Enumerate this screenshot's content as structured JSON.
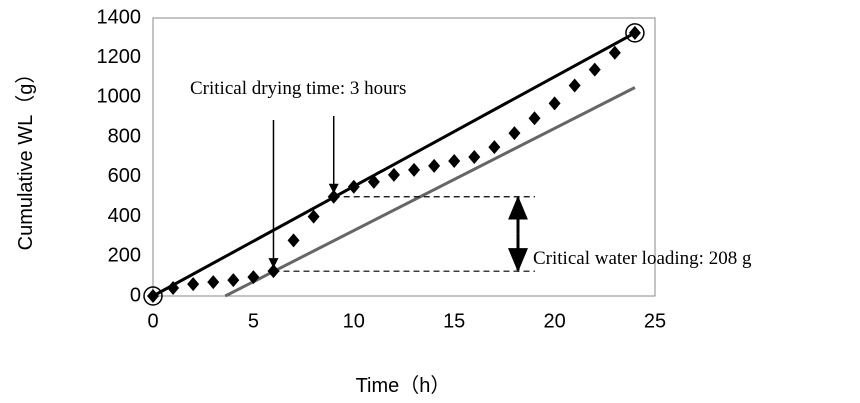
{
  "chart_data": {
    "type": "scatter",
    "x_label": "Time（h）",
    "y_label": "Cumulative WL（g）",
    "xlim": [
      0,
      25
    ],
    "xticks": [
      0,
      5,
      10,
      15,
      20,
      25
    ],
    "ylim": [
      0,
      1400
    ],
    "yticks": [
      0,
      200,
      400,
      600,
      800,
      1000,
      1200,
      1400
    ],
    "x": [
      0,
      1,
      2,
      3,
      4,
      5,
      6,
      7,
      8,
      9,
      10,
      11,
      12,
      13,
      14,
      15,
      16,
      17,
      18,
      19,
      20,
      21,
      22,
      23,
      24
    ],
    "series": [
      {
        "color": "#000000",
        "values": [
          0,
          40,
          60,
          70,
          80,
          95,
          125,
          280,
          400,
          500,
          550,
          575,
          610,
          635,
          655,
          680,
          700,
          750,
          820,
          895,
          970,
          1060,
          1140,
          1225,
          1325
        ]
      }
    ],
    "trend_lines": [
      {
        "color": "#000000",
        "x": [
          0,
          24
        ],
        "y": [
          0,
          1325
        ]
      },
      {
        "color": "#666666",
        "x": [
          3.6,
          24
        ],
        "y": [
          0,
          1050
        ]
      }
    ],
    "annotations": [
      "Critical drying time: 3 hours",
      "Critical water loading: 208 g"
    ]
  }
}
